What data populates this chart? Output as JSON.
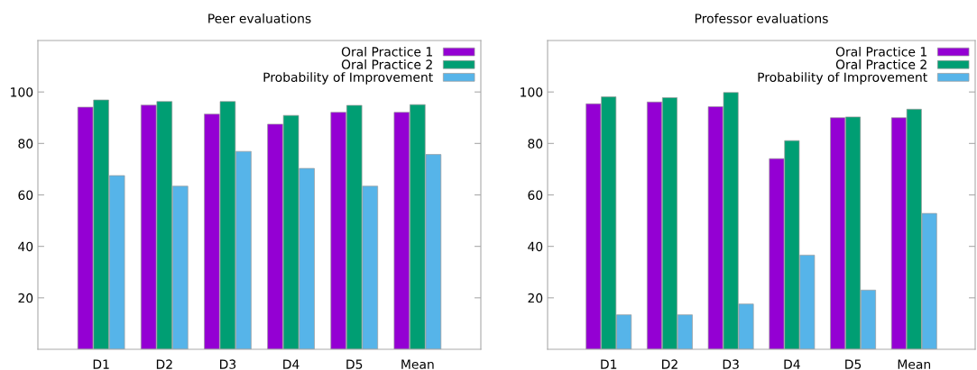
{
  "chart_data": [
    {
      "type": "bar",
      "title": "Peer evaluations",
      "categories": [
        "D1",
        "D2",
        "D3",
        "D4",
        "D5",
        "Mean"
      ],
      "ylim": [
        0,
        120
      ],
      "yticks": [
        20,
        40,
        60,
        80,
        100
      ],
      "legend": "top right",
      "grid": false,
      "series": [
        {
          "name": "Oral Practice 1",
          "color": "#9400d3",
          "values": [
            94.1,
            94.9,
            91.4,
            87.5,
            92.1,
            92.1
          ]
        },
        {
          "name": "Oral Practice 2",
          "color": "#009e73",
          "values": [
            96.9,
            96.3,
            96.3,
            90.9,
            94.8,
            95.1
          ]
        },
        {
          "name": "Probability of Improvement",
          "color": "#56b4e9",
          "values": [
            67.5,
            63.4,
            76.9,
            70.3,
            63.4,
            75.7
          ]
        }
      ]
    },
    {
      "type": "bar",
      "title": "Professor evaluations",
      "categories": [
        "D1",
        "D2",
        "D3",
        "D4",
        "D5",
        "Mean"
      ],
      "ylim": [
        0,
        120
      ],
      "yticks": [
        20,
        40,
        60,
        80,
        100
      ],
      "legend": "top right",
      "grid": false,
      "series": [
        {
          "name": "Oral Practice 1",
          "color": "#9400d3",
          "values": [
            95.4,
            96.1,
            94.3,
            74.1,
            90.0,
            90.0
          ]
        },
        {
          "name": "Oral Practice 2",
          "color": "#009e73",
          "values": [
            98.1,
            97.8,
            99.8,
            81.1,
            90.3,
            93.3
          ]
        },
        {
          "name": "Probability of Improvement",
          "color": "#56b4e9",
          "values": [
            13.4,
            13.4,
            17.6,
            36.6,
            23.0,
            52.8
          ]
        }
      ]
    }
  ]
}
